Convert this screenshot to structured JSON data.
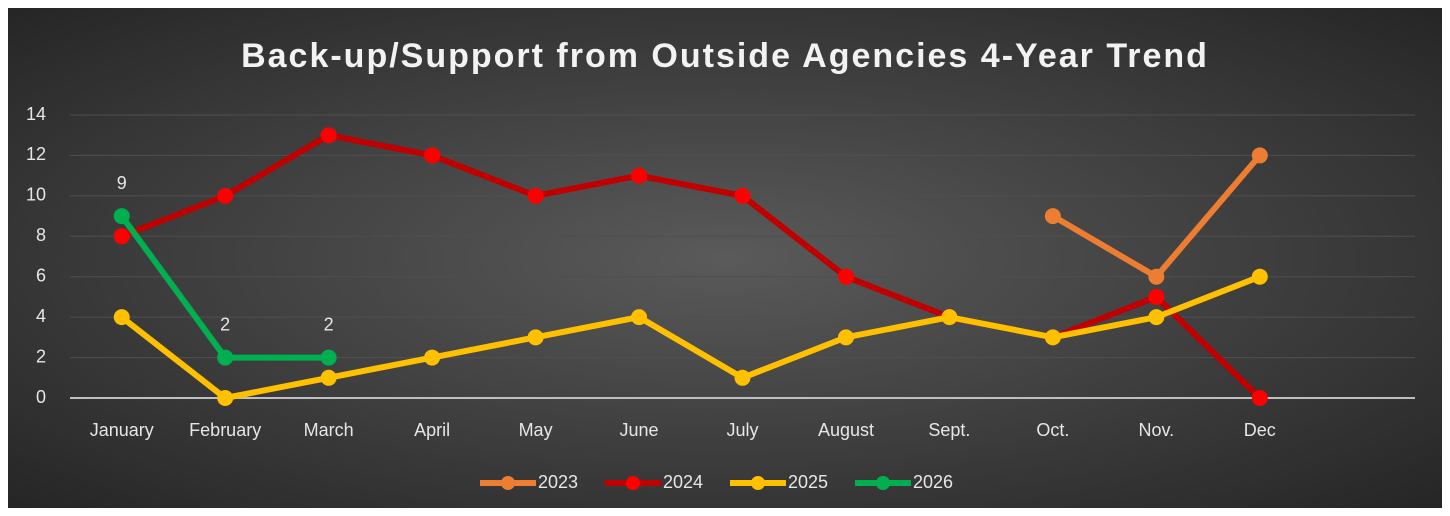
{
  "chart_data": {
    "type": "line",
    "title": "Back-up/Support from Outside Agencies 4-Year Trend",
    "categories": [
      "January",
      "February",
      "March",
      "April",
      "May",
      "June",
      "July",
      "August",
      "Sept.",
      "Oct.",
      "Nov.",
      "Dec",
      null
    ],
    "series": [
      {
        "name": "2023",
        "color": "#ed7d31",
        "values": [
          null,
          null,
          null,
          null,
          null,
          null,
          null,
          null,
          null,
          9,
          6,
          12,
          null
        ]
      },
      {
        "name": "2024",
        "color": "#c00000",
        "marker_color": "#ff0000",
        "values": [
          8,
          10,
          13,
          12,
          10,
          11,
          10,
          6,
          4,
          3,
          5,
          0,
          null
        ]
      },
      {
        "name": "2025",
        "color": "#ffc000",
        "values": [
          4,
          0,
          1,
          2,
          3,
          4,
          1,
          3,
          4,
          3,
          4,
          6,
          null
        ]
      },
      {
        "name": "2026",
        "color": "#00b050",
        "show_labels": true,
        "values": [
          9,
          2,
          2,
          null,
          null,
          null,
          null,
          null,
          null,
          null,
          null,
          null,
          null
        ]
      }
    ],
    "ylim": [
      0,
      14
    ],
    "yticks": [
      0,
      2,
      4,
      6,
      8,
      10,
      12,
      14
    ],
    "grid": true,
    "legend": "bottom"
  }
}
